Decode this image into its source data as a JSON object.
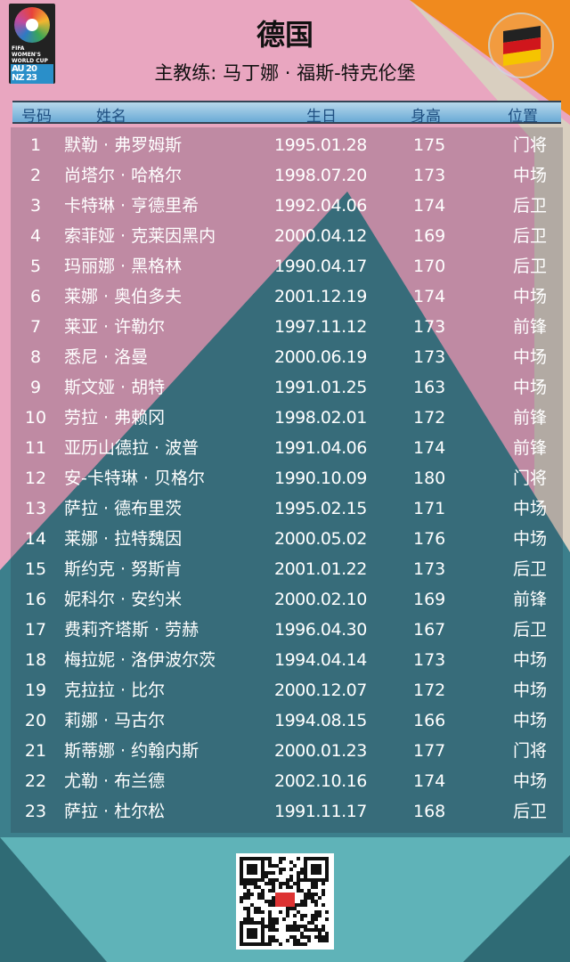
{
  "header": {
    "title": "德国",
    "coach": "主教练: 马丁娜 · 福斯-特克伦堡",
    "logo_text": "FIFA WOMEN'S WORLD CUP AU NZ 2023",
    "flag": "germany-flag"
  },
  "colors": {
    "pink": "#e9a6c0",
    "orange": "#f08a1e",
    "teal": "#3c7f8c",
    "header_bar": "#8cc0e2",
    "text": "#ffffff"
  },
  "table": {
    "columns": [
      "号码",
      "姓名",
      "生日",
      "身高",
      "位置"
    ],
    "rows": [
      [
        "1",
        "默勒 · 弗罗姆斯",
        "1995.01.28",
        "175",
        "门将"
      ],
      [
        "2",
        "尚塔尔 · 哈格尔",
        "1998.07.20",
        "173",
        "中场"
      ],
      [
        "3",
        "卡特琳 · 亨德里希",
        "1992.04.06",
        "174",
        "后卫"
      ],
      [
        "4",
        "索菲娅 · 克莱因黑内",
        "2000.04.12",
        "169",
        "后卫"
      ],
      [
        "5",
        "玛丽娜 · 黑格林",
        "1990.04.17",
        "170",
        "后卫"
      ],
      [
        "6",
        "莱娜 · 奥伯多夫",
        "2001.12.19",
        "174",
        "中场"
      ],
      [
        "7",
        "莱亚 · 许勒尔",
        "1997.11.12",
        "173",
        "前锋"
      ],
      [
        "8",
        "悉尼 · 洛曼",
        "2000.06.19",
        "173",
        "中场"
      ],
      [
        "9",
        "斯文娅 · 胡特",
        "1991.01.25",
        "163",
        "中场"
      ],
      [
        "10",
        "劳拉 · 弗赖冈",
        "1998.02.01",
        "172",
        "前锋"
      ],
      [
        "11",
        "亚历山德拉 · 波普",
        "1991.04.06",
        "174",
        "前锋"
      ],
      [
        "12",
        "安-卡特琳 · 贝格尔",
        "1990.10.09",
        "180",
        "门将"
      ],
      [
        "13",
        "萨拉 · 德布里茨",
        "1995.02.15",
        "171",
        "中场"
      ],
      [
        "14",
        "莱娜 · 拉特魏因",
        "2000.05.02",
        "176",
        "中场"
      ],
      [
        "15",
        "斯约克 · 努斯肯",
        "2001.01.22",
        "173",
        "后卫"
      ],
      [
        "16",
        "妮科尔 · 安约米",
        "2000.02.10",
        "169",
        "前锋"
      ],
      [
        "17",
        "费莉齐塔斯 · 劳赫",
        "1996.04.30",
        "167",
        "后卫"
      ],
      [
        "18",
        "梅拉妮 · 洛伊波尔茨",
        "1994.04.14",
        "173",
        "中场"
      ],
      [
        "19",
        "克拉拉 · 比尔",
        "2000.12.07",
        "172",
        "中场"
      ],
      [
        "20",
        "莉娜 · 马古尔",
        "1994.08.15",
        "166",
        "中场"
      ],
      [
        "21",
        "斯蒂娜 · 约翰内斯",
        "2000.01.23",
        "177",
        "门将"
      ],
      [
        "22",
        "尤勒 · 布兰德",
        "2002.10.16",
        "174",
        "中场"
      ],
      [
        "23",
        "萨拉 · 杜尔松",
        "1991.11.17",
        "168",
        "后卫"
      ]
    ]
  }
}
